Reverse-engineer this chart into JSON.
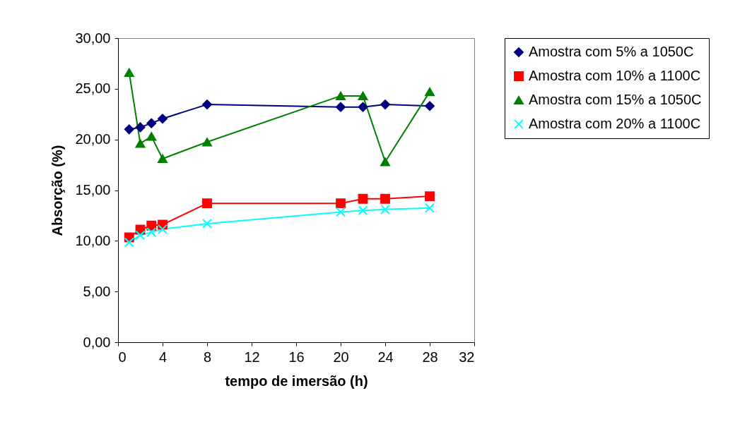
{
  "chart_data": {
    "type": "line",
    "xlabel": "tempo de imersão (h)",
    "ylabel": "Absorção (%)",
    "x": [
      1,
      2,
      3,
      4,
      8,
      20,
      22,
      24,
      28
    ],
    "series": [
      {
        "name": "Amostra com 5% a 1050C",
        "color": "#000080",
        "marker": "diamond",
        "values": [
          21.0,
          21.2,
          21.6,
          22.05,
          23.45,
          23.2,
          23.2,
          23.45,
          23.3
        ]
      },
      {
        "name": "Amostra com 10% a 1100C",
        "color": "#ff0000",
        "marker": "square",
        "values": [
          10.35,
          11.1,
          11.5,
          11.6,
          13.7,
          13.7,
          14.15,
          14.15,
          14.4
        ]
      },
      {
        "name": "Amostra com 15% a 1050C",
        "color": "#008000",
        "marker": "triangle",
        "values": [
          26.6,
          19.6,
          20.3,
          18.1,
          19.75,
          24.3,
          24.3,
          17.8,
          24.7
        ]
      },
      {
        "name": "Amostra com 20% a 1100C",
        "color": "#00ffff",
        "marker": "cross",
        "values": [
          9.85,
          10.55,
          10.85,
          11.15,
          11.7,
          12.85,
          13.0,
          13.1,
          13.25
        ]
      }
    ],
    "xlim": [
      0,
      32
    ],
    "xticks": [
      0,
      4,
      8,
      12,
      16,
      20,
      24,
      28,
      32
    ],
    "ylim": [
      0,
      30
    ],
    "yticks": [
      {
        "value": 0,
        "label": "0,00"
      },
      {
        "value": 5,
        "label": "5,00"
      },
      {
        "value": 10,
        "label": "10,00"
      },
      {
        "value": 15,
        "label": "15,00"
      },
      {
        "value": 20,
        "label": "20,00"
      },
      {
        "value": 25,
        "label": "25,00"
      },
      {
        "value": 30,
        "label": "30,00"
      }
    ],
    "grid": false,
    "legend": "right",
    "line_style": "solid"
  }
}
